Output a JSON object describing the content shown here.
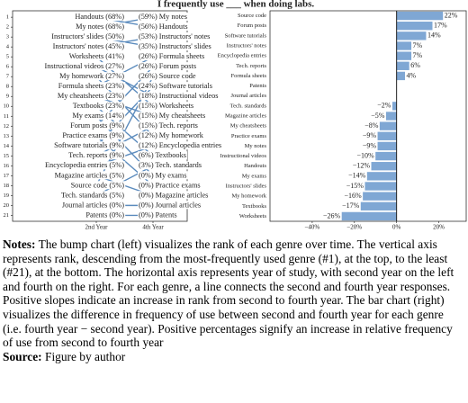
{
  "title": "I frequently use ___ when doing labs.",
  "chart_data": [
    {
      "type": "bump",
      "x": [
        "2nd Year",
        "4th Year"
      ],
      "ylim": [
        0.35,
        21.6
      ],
      "yticks": [
        1,
        2,
        3,
        4,
        5,
        6,
        7,
        8,
        9,
        10,
        11,
        12,
        13,
        14,
        15,
        16,
        17,
        18,
        19,
        20,
        21
      ],
      "color": "#5b8bbd",
      "left_labels": [
        "Handouts (68%)",
        "My notes (68%)",
        "Instructors' slides (50%)",
        "Instructors' notes (45%)",
        "Worksheets (41%)",
        "Instructional videos (27%)",
        "My homework (27%)",
        "Formula sheets (23%)",
        "My cheatsheets (23%)",
        "Textbooks (23%)",
        "My exams (14%)",
        "Forum posts (9%)",
        "Practice exams (9%)",
        "Software tutorials (9%)",
        "Tech. reports (9%)",
        "Encyclopedia entries (5%)",
        "Magazine articles (5%)",
        "Source code (5%)",
        "Tech. standards (5%)",
        "Journal articles (0%)",
        "Patents (0%)"
      ],
      "right_labels": [
        "(59%) My notes",
        "(56%) Handouts",
        "(53%) Instructors' notes",
        "(35%) Instructors' slides",
        "(26%) Formula sheets",
        "(26%) Forum posts",
        "(26%) Source code",
        "(24%) Software tutorials",
        "(18%) Instructional videos",
        "(15%) Worksheets",
        "(15%) My cheatsheets",
        "(15%) Tech. reports",
        "(12%) My homework",
        "(12%) Encyclopedia entries",
        "(6%) Textbooks",
        "(3%) Tech. standards",
        "(0%) My exams",
        "(0%) Practice exams",
        "(0%) Magazine articles",
        "(0%) Journal articles",
        "(0%) Patents"
      ],
      "series": [
        {
          "values": [
            1,
            2
          ]
        },
        {
          "values": [
            2,
            1
          ]
        },
        {
          "values": [
            3,
            4
          ]
        },
        {
          "values": [
            4,
            3
          ]
        },
        {
          "values": [
            5,
            10
          ]
        },
        {
          "values": [
            6,
            9
          ]
        },
        {
          "values": [
            7,
            13
          ]
        },
        {
          "values": [
            8,
            5
          ]
        },
        {
          "values": [
            9,
            11
          ]
        },
        {
          "values": [
            10,
            15
          ]
        },
        {
          "values": [
            11,
            17
          ]
        },
        {
          "values": [
            12,
            6
          ]
        },
        {
          "values": [
            13,
            18
          ]
        },
        {
          "values": [
            14,
            8
          ]
        },
        {
          "values": [
            15,
            12
          ]
        },
        {
          "values": [
            16,
            14
          ]
        },
        {
          "values": [
            17,
            19
          ]
        },
        {
          "values": [
            18,
            7
          ]
        },
        {
          "values": [
            19,
            16
          ]
        },
        {
          "values": [
            20,
            20
          ]
        },
        {
          "values": [
            21,
            21
          ]
        }
      ]
    },
    {
      "type": "barh",
      "categories": [
        "Source code",
        "Forum posts",
        "Software tutorials",
        "Instructors' notes",
        "Encyclopedia entries",
        "Tech. reports",
        "Formula sheets",
        "Patents",
        "Journal articles",
        "Tech. standards",
        "Magazine articles",
        "My cheatsheets",
        "Practice exams",
        "My notes",
        "Instructional videos",
        "Handouts",
        "My exams",
        "Instructors' slides",
        "My homework",
        "Textbooks",
        "Worksheets"
      ],
      "values": [
        22,
        17,
        14,
        7,
        7,
        6,
        4,
        0,
        0,
        -2,
        -5,
        -8,
        -9,
        -9,
        -10,
        -12,
        -14,
        -15,
        -16,
        -17,
        -26
      ],
      "value_labels": [
        "22%",
        "17%",
        "14%",
        "7%",
        "7%",
        "6%",
        "4%",
        null,
        null,
        "−2%",
        "−5%",
        "−8%",
        "−9%",
        "−9%",
        "−10%",
        "−12%",
        "−14%",
        "−15%",
        "−16%",
        "−17%",
        "−26%"
      ],
      "color": "#7fa7d4",
      "xlim": [
        -60,
        33
      ],
      "xticks": [
        {
          "value": -40,
          "label": "−40%"
        },
        {
          "value": -20,
          "label": "−20%"
        },
        {
          "value": 0,
          "label": "0%"
        },
        {
          "value": 20,
          "label": "20%"
        }
      ]
    }
  ],
  "notes": {
    "label": "Notes:",
    "text": "The bump chart (left) visualizes the rank of each genre over time. The vertical axis represents rank, descending from the most-frequently used genre (#1), at the top, to the least (#21), at the bottom. The horizontal axis represents year of study, with second year on the left and fourth on the right. For each genre, a line connects the second and fourth year responses. Positive slopes indicate an increase in rank from second to fourth year. The bar chart (right) visualizes the difference in frequency of use between second and fourth year for each genre (i.e. fourth year − second year). Positive percentages signify an increase in relative frequency of use from second to fourth year"
  },
  "source": {
    "label": "Source:",
    "text": "Figure by author"
  }
}
